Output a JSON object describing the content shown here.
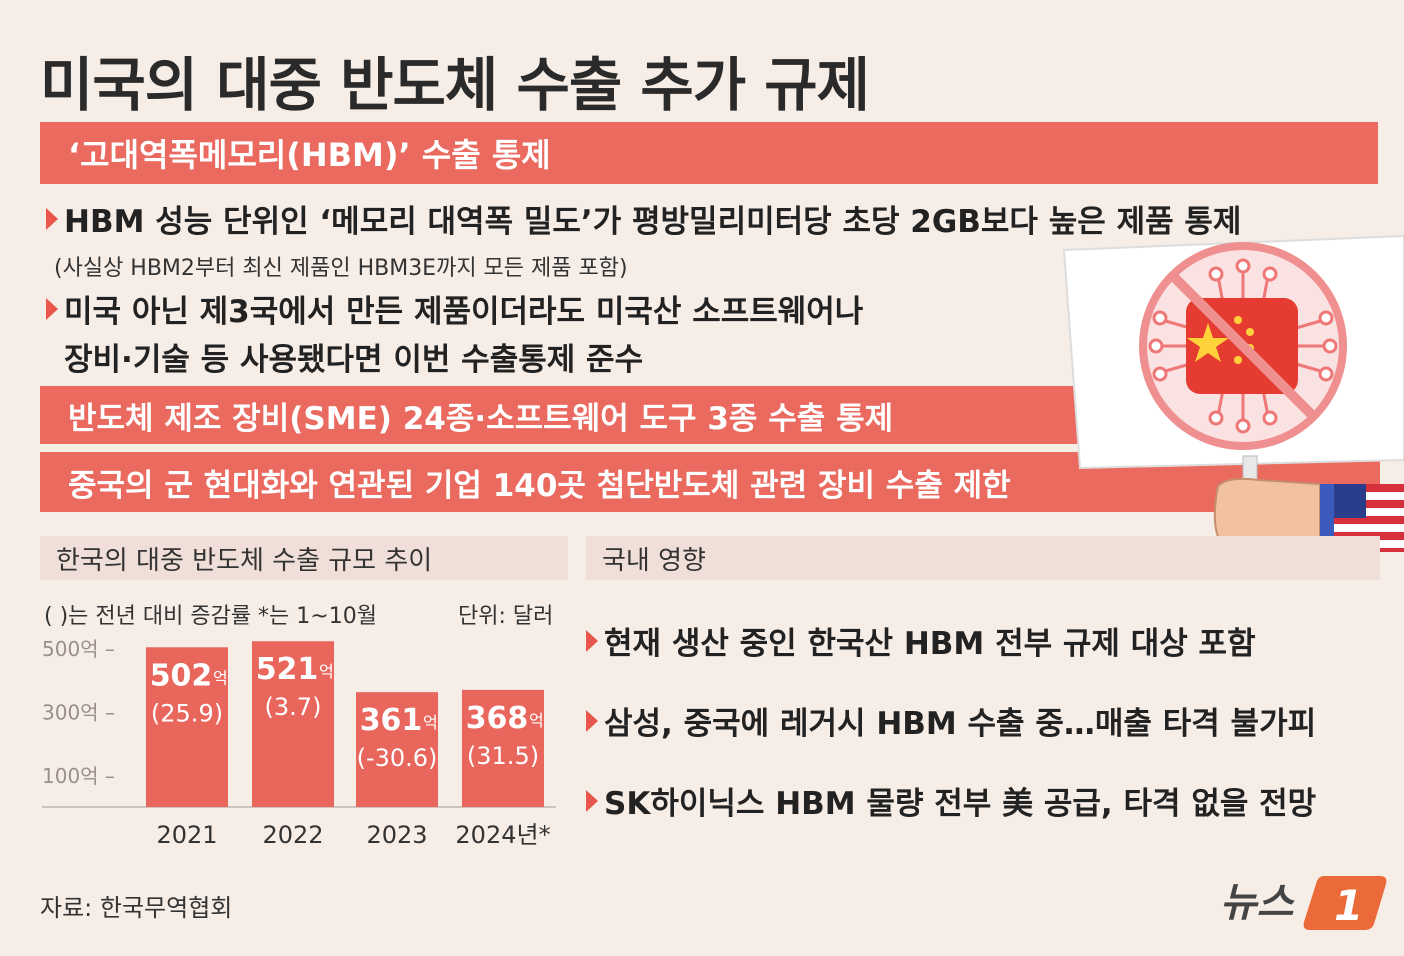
{
  "title": "미국의 대중 반도체 수출 추가 규제",
  "section1": {
    "header": "‘고대역폭메모리(HBM)’ 수출 통제",
    "bullet1": "HBM 성능 단위인 ‘메모리 대역폭 밀도’가 평방밀리미터당 초당 2GB보다 높은 제품 통제",
    "note1": "(사실상 HBM2부터 최신 제품인 HBM3E까지 모든 제품 포함)",
    "bullet2_line1": "미국 아닌 제3국에서 만든 제품이더라도 미국산 소프트웨어나",
    "bullet2_line2": "장비·기술 등 사용됐다면 이번 수출통제 준수"
  },
  "band2": "반도체 제조 장비(SME) 24종·소프트웨어 도구 3종 수출 통제",
  "band3": "중국의 군 현대화와 연관된 기업 140곳 첨단반도체 관련 장비 수출 제한",
  "chart_header": "한국의 대중 반도체 수출 규모 추이",
  "chart_legend": "( )는 전년 대비 증감률  *는 1~10월",
  "chart_unit": "단위: 달러",
  "impact_header": "국내 영향",
  "impacts": [
    "현재 생산 중인 한국산 HBM 전부 규제 대상 포함",
    "삼성, 중국에 레거시 HBM 수출 중…매출 타격 불가피",
    "SK하이닉스 HBM 물량 전부 美 공급, 타격 없을 전망"
  ],
  "source": "자료: 한국무역협회",
  "logo_text": "뉴스",
  "logo_mark": "1",
  "colors": {
    "accent": "#ea6a60",
    "bar": "#e8665c",
    "background": "#f6ede7",
    "header_bg": "#efdfd8"
  },
  "icons": [
    "triangle-bullet-icon",
    "no-china-chip-sign-icon",
    "us-flag-icon",
    "news1-logo"
  ],
  "chart_data": {
    "type": "bar",
    "categories": [
      "2021",
      "2022",
      "2023",
      "2024년*"
    ],
    "values": [
      502,
      521,
      361,
      368
    ],
    "value_labels": [
      "502",
      "521",
      "361",
      "368"
    ],
    "value_unit": "억",
    "changes": [
      "(25.9)",
      "(3.7)",
      "(-30.6)",
      "(31.5)"
    ],
    "yticks": [
      100,
      300,
      500
    ],
    "ytick_labels": [
      "100억",
      "300억",
      "500억"
    ],
    "ylim": [
      0,
      550
    ],
    "grid": false
  }
}
